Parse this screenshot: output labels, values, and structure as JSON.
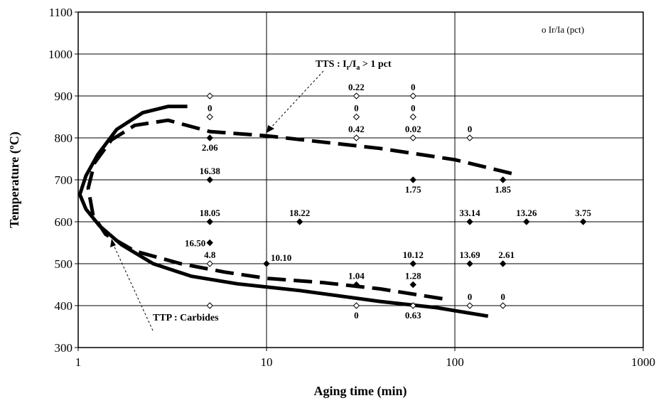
{
  "chart_data": {
    "type": "scatter",
    "title": "",
    "xlabel": "Aging time (min)",
    "ylabel": "Temperature (ºC)",
    "xscale": "log",
    "xlim": [
      1,
      1000
    ],
    "ylim": [
      300,
      1100
    ],
    "x_ticks": [
      1,
      10,
      100,
      1000
    ],
    "x_tick_labels": [
      "1",
      "10",
      "100",
      "1000"
    ],
    "y_ticks": [
      300,
      400,
      500,
      600,
      700,
      800,
      900,
      1000,
      1100
    ],
    "y_tick_labels": [
      "300",
      "400",
      "500",
      "600",
      "700",
      "800",
      "900",
      "1000",
      "1100"
    ],
    "grid": true,
    "legend_text": "o Ir/Ia (pct)",
    "legend_position": "top-right",
    "points": [
      {
        "x": 5,
        "y": 900,
        "filled": false,
        "label": ""
      },
      {
        "x": 5,
        "y": 850,
        "filled": false,
        "label": "0"
      },
      {
        "x": 5,
        "y": 800,
        "filled": true,
        "label": "2.06"
      },
      {
        "x": 5,
        "y": 700,
        "filled": true,
        "label": "16.38"
      },
      {
        "x": 5,
        "y": 600,
        "filled": true,
        "label": "18.05"
      },
      {
        "x": 5,
        "y": 550,
        "filled": true,
        "label": "16.50"
      },
      {
        "x": 5,
        "y": 500,
        "filled": false,
        "label": "4.8"
      },
      {
        "x": 5,
        "y": 400,
        "filled": false,
        "label": ""
      },
      {
        "x": 10,
        "y": 500,
        "filled": true,
        "label": "10.10"
      },
      {
        "x": 15,
        "y": 600,
        "filled": true,
        "label": "18.22"
      },
      {
        "x": 30,
        "y": 900,
        "filled": false,
        "label": "0.22"
      },
      {
        "x": 30,
        "y": 850,
        "filled": false,
        "label": "0"
      },
      {
        "x": 30,
        "y": 800,
        "filled": false,
        "label": "0.42"
      },
      {
        "x": 30,
        "y": 450,
        "filled": true,
        "label": "1.04"
      },
      {
        "x": 30,
        "y": 400,
        "filled": false,
        "label": "0"
      },
      {
        "x": 60,
        "y": 900,
        "filled": false,
        "label": "0"
      },
      {
        "x": 60,
        "y": 850,
        "filled": false,
        "label": "0"
      },
      {
        "x": 60,
        "y": 800,
        "filled": false,
        "label": "0.02"
      },
      {
        "x": 60,
        "y": 700,
        "filled": true,
        "label": "1.75"
      },
      {
        "x": 60,
        "y": 500,
        "filled": true,
        "label": "10.12"
      },
      {
        "x": 60,
        "y": 450,
        "filled": true,
        "label": "1.28"
      },
      {
        "x": 60,
        "y": 400,
        "filled": false,
        "label": "0.63"
      },
      {
        "x": 120,
        "y": 800,
        "filled": false,
        "label": "0"
      },
      {
        "x": 120,
        "y": 600,
        "filled": true,
        "label": "33.14"
      },
      {
        "x": 120,
        "y": 500,
        "filled": true,
        "label": "13.69"
      },
      {
        "x": 120,
        "y": 400,
        "filled": false,
        "label": "0"
      },
      {
        "x": 180,
        "y": 700,
        "filled": true,
        "label": "1.85"
      },
      {
        "x": 180,
        "y": 500,
        "filled": true,
        "label": "2.61"
      },
      {
        "x": 180,
        "y": 400,
        "filled": false,
        "label": "0"
      },
      {
        "x": 240,
        "y": 600,
        "filled": true,
        "label": "13.26"
      },
      {
        "x": 480,
        "y": 600,
        "filled": true,
        "label": "3.75"
      }
    ],
    "curves": [
      {
        "style": "dashed",
        "points": [
          [
            200,
            715
          ],
          [
            100,
            748
          ],
          [
            40,
            775
          ],
          [
            10,
            805
          ],
          [
            5,
            815
          ],
          [
            3,
            842
          ],
          [
            2,
            830
          ],
          [
            1.5,
            795
          ],
          [
            1.22,
            740
          ],
          [
            1.13,
            680
          ],
          [
            1.2,
            615
          ],
          [
            1.4,
            570
          ],
          [
            2,
            530
          ],
          [
            3.5,
            500
          ],
          [
            6,
            480
          ],
          [
            10,
            465
          ],
          [
            20,
            455
          ],
          [
            40,
            440
          ],
          [
            90,
            415
          ]
        ]
      },
      {
        "style": "solid",
        "points": [
          [
            3.8,
            875
          ],
          [
            3,
            875
          ],
          [
            2.2,
            860
          ],
          [
            1.6,
            820
          ],
          [
            1.27,
            760
          ],
          [
            1.1,
            710
          ],
          [
            1.02,
            665
          ],
          [
            1.1,
            630
          ],
          [
            1.3,
            590
          ],
          [
            1.7,
            545
          ],
          [
            2.5,
            500
          ],
          [
            4,
            470
          ],
          [
            7,
            452
          ],
          [
            15,
            436
          ],
          [
            40,
            410
          ],
          [
            80,
            395
          ],
          [
            150,
            375
          ]
        ]
      }
    ],
    "annotations": [
      {
        "text": "TTS : Ir/Ia > 1 pct",
        "points_to": [
          10,
          810
        ]
      },
      {
        "text": "TTP : Carbides",
        "points_to": [
          1.5,
          555
        ]
      }
    ]
  }
}
